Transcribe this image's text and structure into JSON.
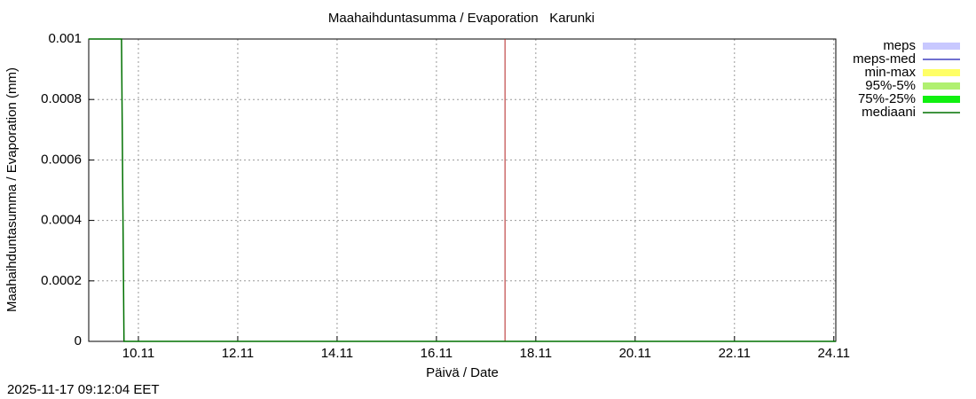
{
  "chart_data": {
    "type": "line",
    "title": "Maahaihduntasumma / Evaporation   Karunki",
    "x_label": "Päivä / Date",
    "y_label": "Maahaihduntasumma / Evaporation (mm)",
    "footer": "2025-11-17 09:12:04 EET",
    "xlim": [
      9,
      24.04
    ],
    "xticks": [
      {
        "value": 10,
        "label": "10.11"
      },
      {
        "value": 12,
        "label": "12.11"
      },
      {
        "value": 14,
        "label": "14.11"
      },
      {
        "value": 16,
        "label": "16.11"
      },
      {
        "value": 18,
        "label": "18.11"
      },
      {
        "value": 20,
        "label": "20.11"
      },
      {
        "value": 22,
        "label": "22.11"
      },
      {
        "value": 24,
        "label": "24.11"
      }
    ],
    "ylim": [
      0,
      0.001
    ],
    "yticks": [
      0,
      0.0002,
      0.0004,
      0.0006,
      0.0008,
      0.001
    ],
    "grid": true,
    "legend": "outside-right",
    "vline": {
      "x": 17.38,
      "color": "#b22222"
    },
    "series": [
      {
        "name": "meps",
        "color": "#c8c8ff",
        "style": "band",
        "x": [],
        "values": []
      },
      {
        "name": "meps-med",
        "color": "#4040c0",
        "style": "line",
        "x": [],
        "values": []
      },
      {
        "name": "min-max",
        "color": "#ffff66",
        "style": "band",
        "x": [],
        "values": []
      },
      {
        "name": "95%-5%",
        "color": "#b0f070",
        "style": "band",
        "x": [],
        "values": []
      },
      {
        "name": "75%-25%",
        "color": "#10f010",
        "style": "band",
        "x": [],
        "values": []
      },
      {
        "name": "mediaani",
        "color": "#007000",
        "style": "line",
        "x": [
          9,
          9.66,
          9.71,
          24.04
        ],
        "values": [
          0.001,
          0.001,
          0,
          0
        ]
      }
    ]
  }
}
